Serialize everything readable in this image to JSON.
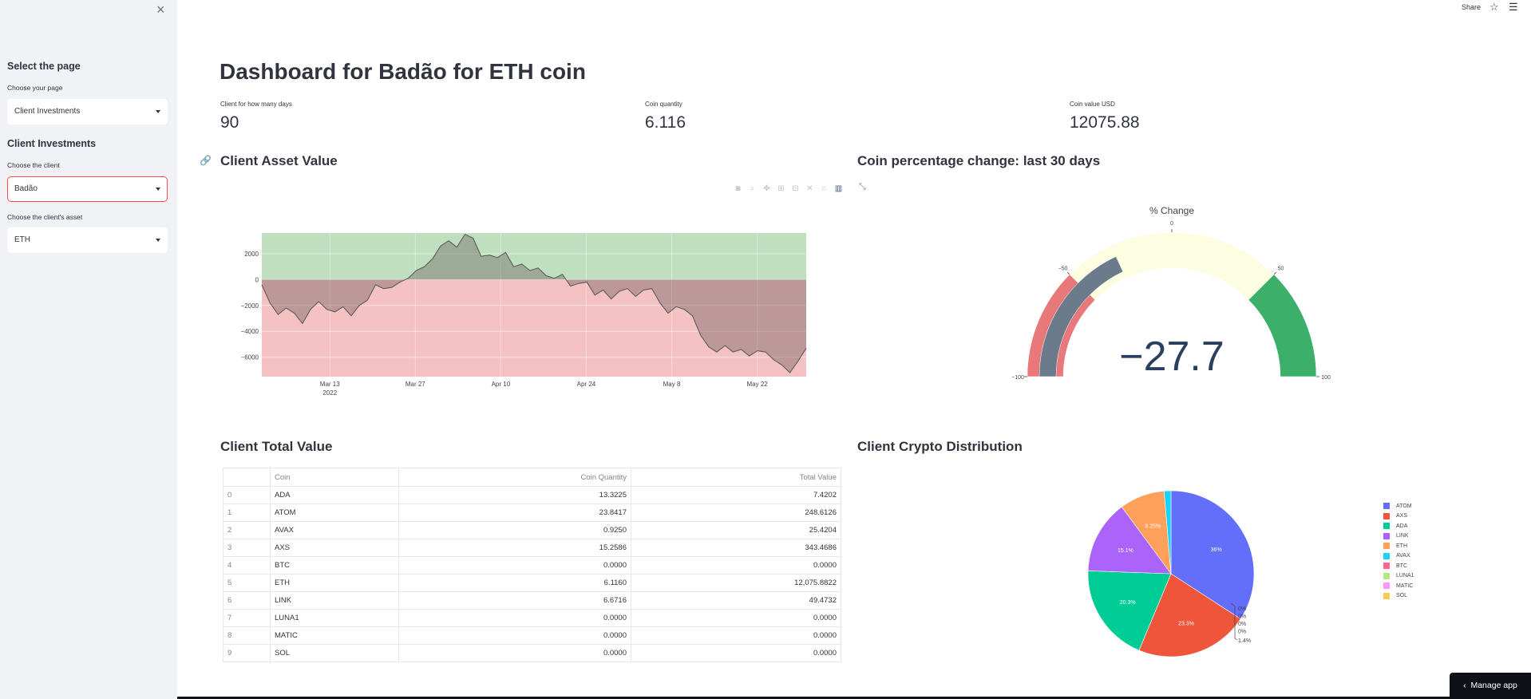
{
  "sidebar": {
    "close": "×",
    "select_page_heading": "Select the page",
    "choose_page_label": "Choose your page",
    "page_value": "Client Investments",
    "section_heading": "Client Investments",
    "choose_client_label": "Choose the client",
    "client_value": "Badão",
    "choose_asset_label": "Choose the client's asset",
    "asset_value": "ETH"
  },
  "topbar": {
    "share_label": "Share",
    "star_icon": "star-icon",
    "menu_icon": "hamburger-menu-icon"
  },
  "title": "Dashboard for Badão for ETH coin",
  "metrics": [
    {
      "label": "Client for how many days",
      "value": "90"
    },
    {
      "label": "Coin quantity",
      "value": "6.116"
    },
    {
      "label": "Coin value USD",
      "value": "12075.88"
    }
  ],
  "sections": {
    "asset_value": "Client Asset Value",
    "pct_change": "Coin percentage change: last 30 days",
    "total_value": "Client Total Value",
    "distribution": "Client Crypto Distribution"
  },
  "chart_data": [
    {
      "type": "area",
      "name": "asset-value-area",
      "x_ticks": [
        "Mar 13",
        "Mar 27",
        "Apr 10",
        "Apr 24",
        "May 8",
        "May 22"
      ],
      "x_sub_label": "2022",
      "y_ticks": [
        "2000",
        "0",
        "−2000",
        "−4000",
        "−6000"
      ],
      "ylim": [
        -7500,
        3600
      ],
      "colors": {
        "positive": "#bfdfbf",
        "negative": "#f4c2c2",
        "line": "#555555"
      },
      "values": [
        -400,
        -1800,
        -2700,
        -2200,
        -2600,
        -3400,
        -2300,
        -1700,
        -2300,
        -2500,
        -2100,
        -2800,
        -2000,
        -1600,
        -400,
        -700,
        -600,
        -200,
        100,
        700,
        1000,
        1600,
        2600,
        3000,
        2500,
        3500,
        3200,
        1800,
        1900,
        1700,
        2100,
        1000,
        1200,
        700,
        900,
        300,
        100,
        400,
        -500,
        -300,
        -200,
        -1200,
        -800,
        -1500,
        -900,
        -700,
        -1300,
        -800,
        -700,
        -1800,
        -2600,
        -2100,
        -2300,
        -2800,
        -4300,
        -5200,
        -5600,
        -5100,
        -5600,
        -5400,
        -5900,
        -5500,
        -5600,
        -6200,
        -6600,
        -7200,
        -6300,
        -5300
      ]
    },
    {
      "type": "gauge",
      "name": "pct-change-gauge",
      "title": "% Change",
      "value": -27.7,
      "value_text": "−27.7",
      "range": [
        -100,
        100
      ],
      "tick_labels": [
        "−100",
        "−50",
        "0",
        "50",
        "100"
      ],
      "steps": [
        {
          "range": [
            -100,
            -50
          ],
          "color": "#e8787a"
        },
        {
          "range": [
            -50,
            50
          ],
          "color": "#fdfde2"
        },
        {
          "range": [
            50,
            100
          ],
          "color": "#3cb06b"
        }
      ],
      "bar_color": "#6b7b8c"
    },
    {
      "type": "pie",
      "name": "crypto-distribution-pie",
      "slices": [
        {
          "label": "ATOM",
          "percent": 36,
          "color": "#636efa",
          "text": "36%"
        },
        {
          "label": "AXS",
          "percent": 23.3,
          "color": "#ef553b",
          "text": "23.3%"
        },
        {
          "label": "ADA",
          "percent": 20.3,
          "color": "#00cc96",
          "text": "20.3%"
        },
        {
          "label": "LINK",
          "percent": 15.1,
          "color": "#ab63fa",
          "text": "15.1%"
        },
        {
          "label": "ETH",
          "percent": 9.25,
          "color": "#ffa15a",
          "text": "9.25%"
        },
        {
          "label": "AVAX",
          "percent": 1.4,
          "color": "#19d3f3",
          "text": "1.4%"
        },
        {
          "label": "BTC",
          "percent": 0,
          "color": "#ff6692",
          "text": "0%"
        },
        {
          "label": "LUNA1",
          "percent": 0,
          "color": "#b6e880",
          "text": "0%"
        },
        {
          "label": "MATIC",
          "percent": 0,
          "color": "#ff97ff",
          "text": "0%"
        },
        {
          "label": "SOL",
          "percent": 0,
          "color": "#fecb52",
          "text": "0%"
        }
      ]
    }
  ],
  "table": {
    "headers": [
      "",
      "Coin",
      "Coin Quantity",
      "Total Value"
    ],
    "rows": [
      [
        "0",
        "ADA",
        "13.3225",
        "7.4202"
      ],
      [
        "1",
        "ATOM",
        "23.8417",
        "248.6126"
      ],
      [
        "2",
        "AVAX",
        "0.9250",
        "25.4204"
      ],
      [
        "3",
        "AXS",
        "15.2586",
        "343.4686"
      ],
      [
        "4",
        "BTC",
        "0.0000",
        "0.0000"
      ],
      [
        "5",
        "ETH",
        "6.1160",
        "12,075.8822"
      ],
      [
        "6",
        "LINK",
        "6.6716",
        "49.4732"
      ],
      [
        "7",
        "LUNA1",
        "0.0000",
        "0.0000"
      ],
      [
        "8",
        "MATIC",
        "0.0000",
        "0.0000"
      ],
      [
        "9",
        "SOL",
        "0.0000",
        "0.0000"
      ]
    ]
  },
  "manage_app_label": "Manage app"
}
